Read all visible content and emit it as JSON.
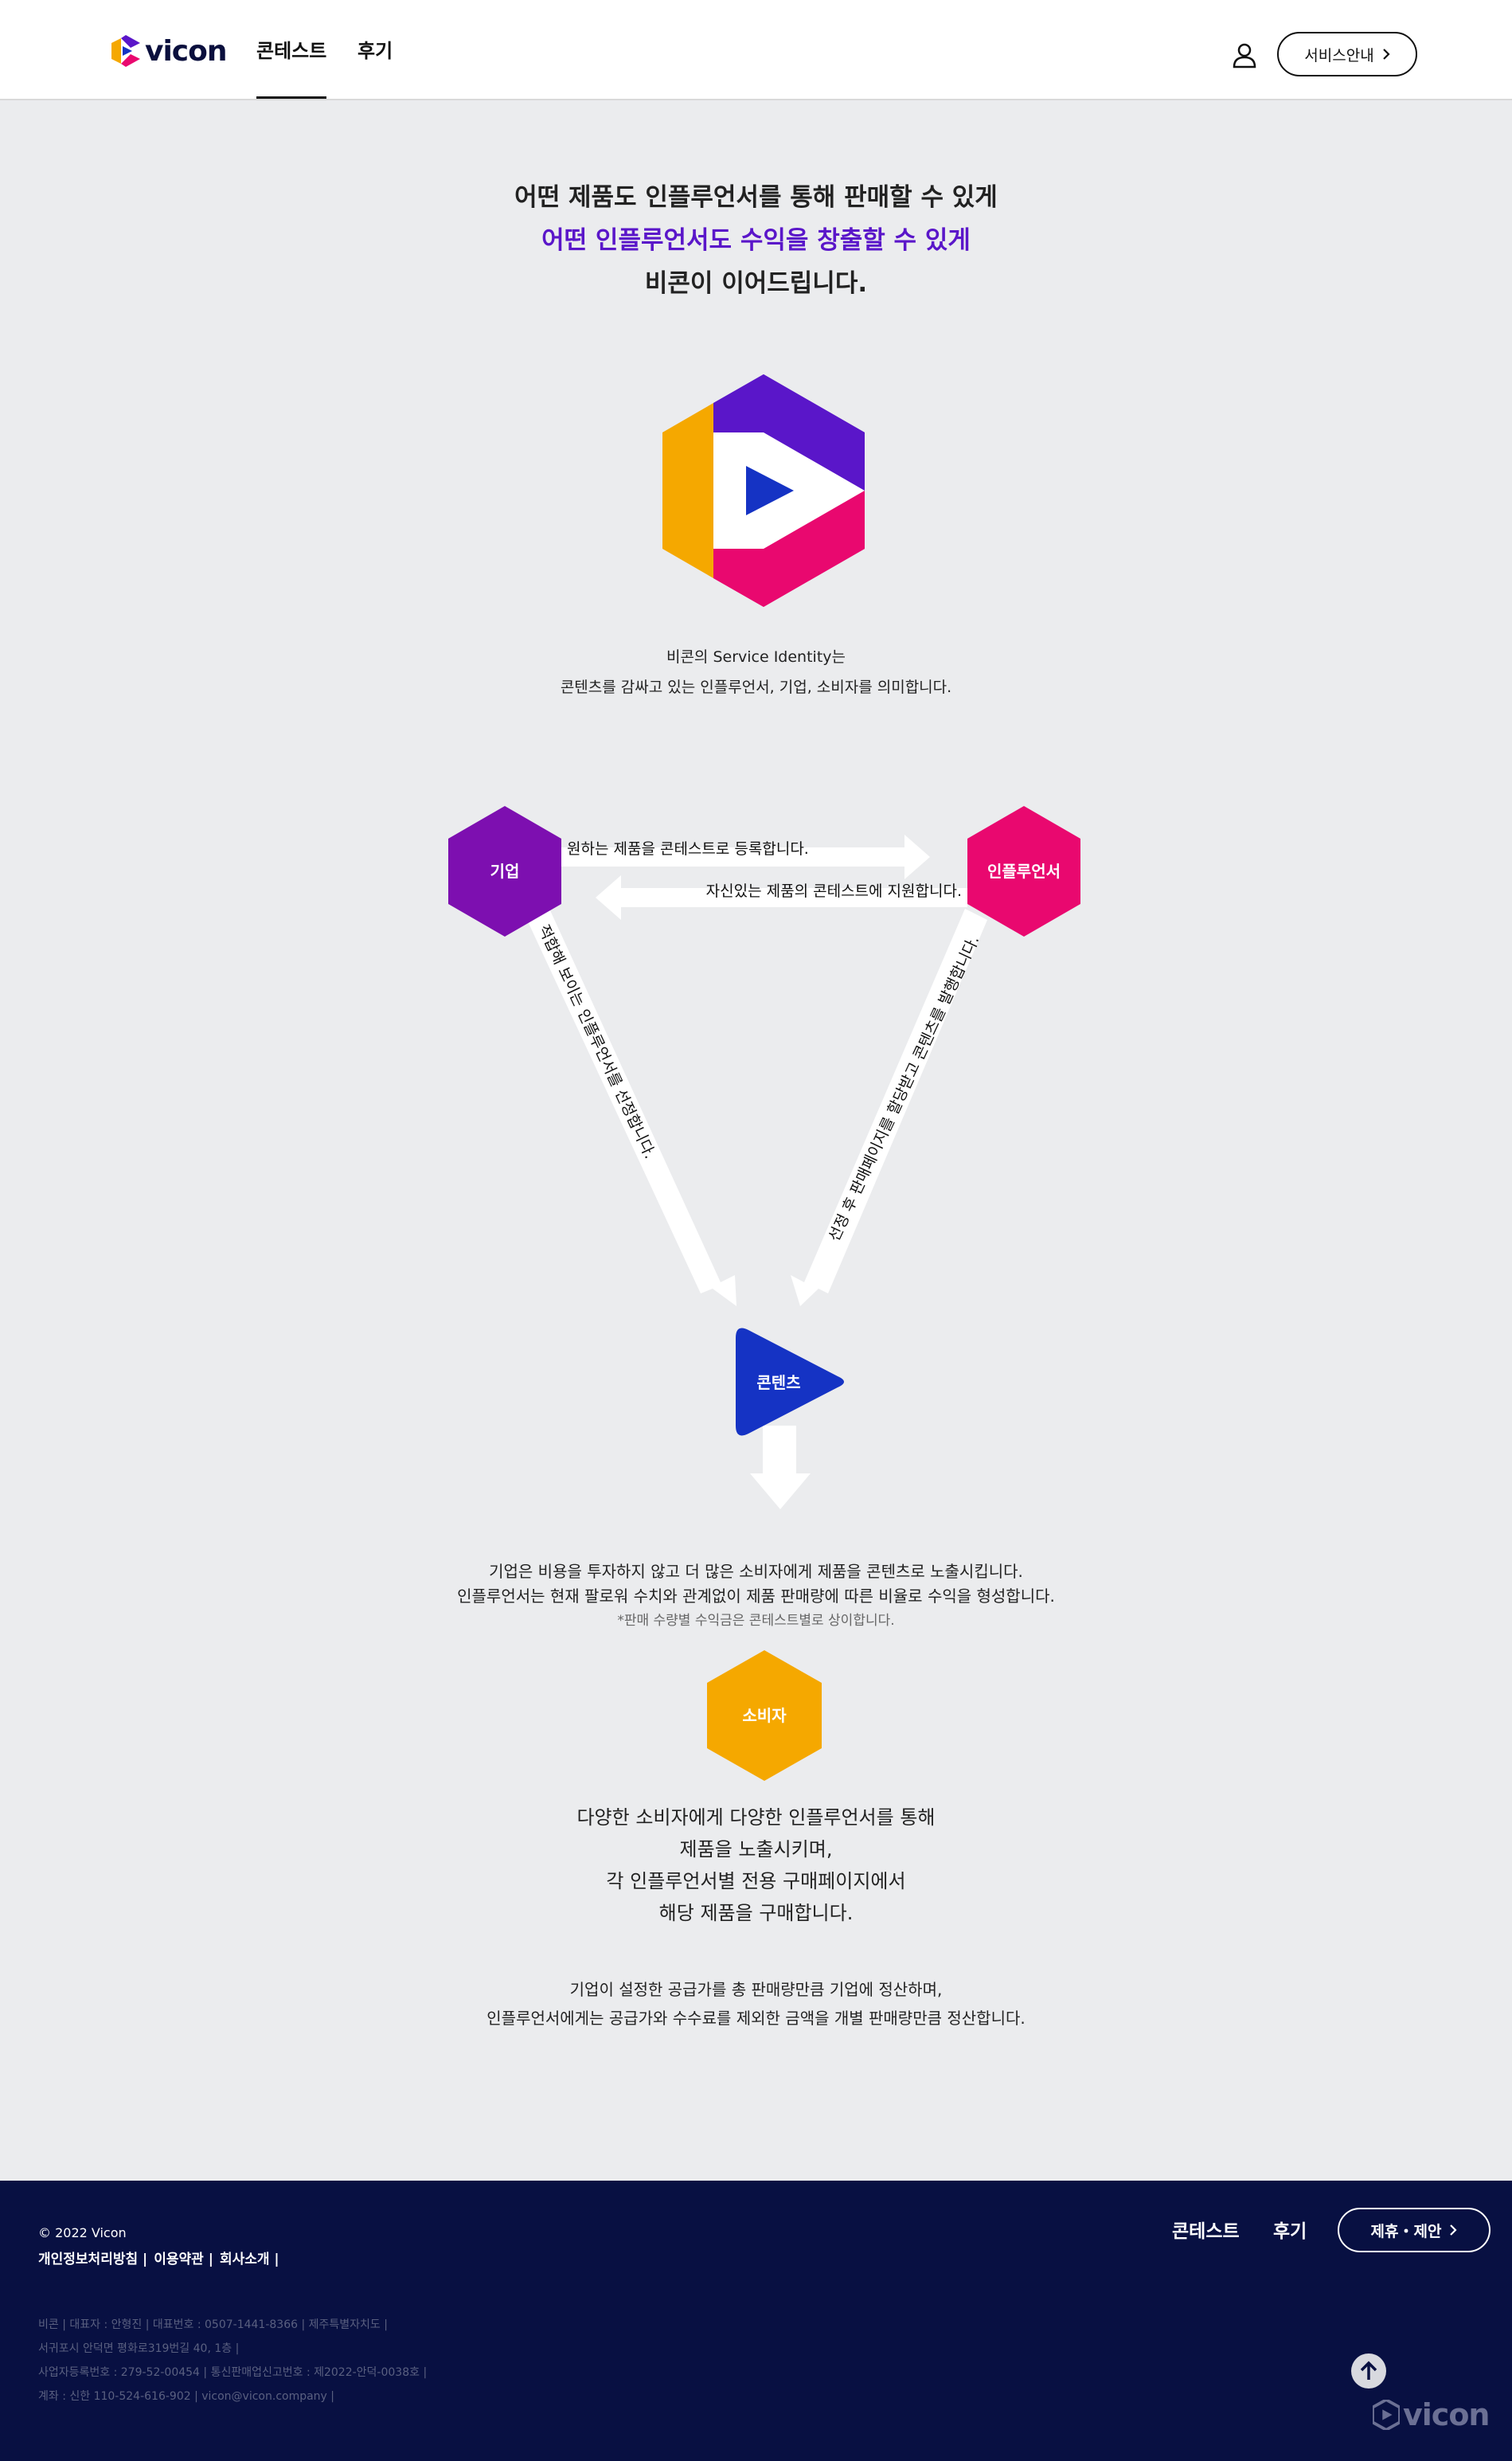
{
  "header": {
    "logo_text": "vicon",
    "nav": [
      {
        "label": "콘테스트",
        "active": true
      },
      {
        "label": "후기",
        "active": false
      }
    ],
    "user_icon": "user-icon",
    "service_button": "서비스안내"
  },
  "intro": {
    "line1": "어떤 제품도 인플루언서를 통해 판매할 수 있게",
    "line2": "어떤 인플루언서도 수익을 창출할 수 있게",
    "line3": "비콘이 이어드립니다.",
    "accent_color": "#5a16c9"
  },
  "identity": {
    "line1": "비콘의 Service Identity는",
    "line2": "콘텐츠를 감싸고 있는 인플루언서, 기업, 소비자를 의미합니다."
  },
  "diagram": {
    "company": "기업",
    "influencer": "인플루언서",
    "content": "콘텐츠",
    "consumer": "소비자",
    "arrow_register": "원하는 제품을 콘테스트로 등록합니다.",
    "arrow_apply": "자신있는 제품의 콘테스트에 지원합니다.",
    "arrow_select": "적합해 보이는 인플루언서를 선정합니다.",
    "arrow_publish": "선정 후 판매페이지를 할당받고 콘텐츠를 발행합니다.",
    "colors": {
      "company": "#7d0fb0",
      "influencer": "#e9086f",
      "content": "#1533c4",
      "consumer": "#f5a800"
    }
  },
  "content_desc": {
    "line1": "기업은 비용을 투자하지 않고 더 많은 소비자에게 제품을 콘텐츠로 노출시킵니다.",
    "line2": "인플루언서는 현재 팔로워 수치와 관계없이 제품 판매량에 따른 비율로 수익을 형성합니다.",
    "note": "*판매 수량별 수익금은 콘테스트별로 상이합니다."
  },
  "consumer_desc": {
    "line1": "다양한 소비자에게 다양한 인플루언서를 통해",
    "line2": "제품을 노출시키며,",
    "line3": "각 인플루언서별 전용 구매페이지에서",
    "line4": "해당 제품을 구매합니다."
  },
  "settlement": {
    "line1": "기업이 설정한 공급가를 총 판매량만큼 기업에 정산하며,",
    "line2": "인플루언서에게는 공급가와 수수료를 제외한 금액을 개별 판매량만큼 정산합니다."
  },
  "footer": {
    "copyright": "© 2022 Vicon",
    "links": [
      "개인정보처리방침 |",
      "이용약관 |",
      "회사소개 |"
    ],
    "nav": [
      "콘테스트",
      "후기"
    ],
    "partner_button": "제휴・제안",
    "info": [
      "비콘 | 대표자 : 안형진 | 대표번호 : 0507-1441-8366 | 제주특별자치도 |",
      "서귀포시 안덕면 평화로319번길 40, 1층 |",
      "사업자등록번호 : 279-52-00454 | 통신판매업신고번호 : 제2022-안덕-0038호 |",
      "계좌 : 신한 110-524-616-902 | vicon@vicon.company |"
    ],
    "logo_text": "vicon",
    "background": "#081042"
  }
}
